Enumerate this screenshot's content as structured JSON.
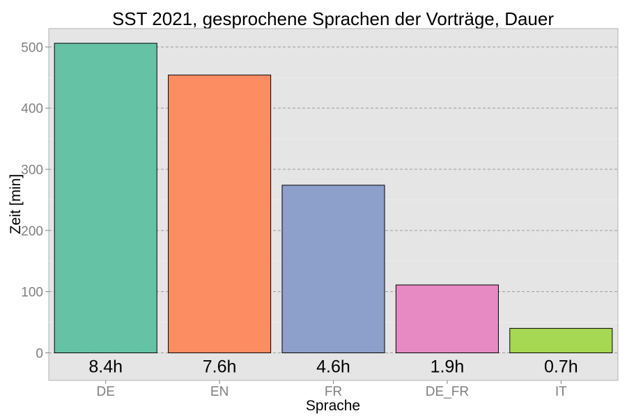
{
  "chart_data": {
    "type": "bar",
    "title": "SST 2021, gesprochene Sprachen der Vorträge, Dauer",
    "xlabel": "Sprache",
    "ylabel": "Zeit [min]",
    "categories": [
      "DE",
      "EN",
      "FR",
      "DE_FR",
      "IT"
    ],
    "values": [
      506,
      454,
      274,
      111,
      40
    ],
    "data_labels": [
      "8.4h",
      "7.6h",
      "4.6h",
      "1.9h",
      "0.7h"
    ],
    "colors": [
      "#66c2a5",
      "#fc8d62",
      "#8da0cb",
      "#e78ac3",
      "#a6d854"
    ],
    "ylim": [
      -45,
      530
    ],
    "yticks": [
      0,
      100,
      200,
      300,
      400,
      500
    ],
    "grid": true,
    "legend": "none",
    "panel_background": "#e5e5e5"
  }
}
